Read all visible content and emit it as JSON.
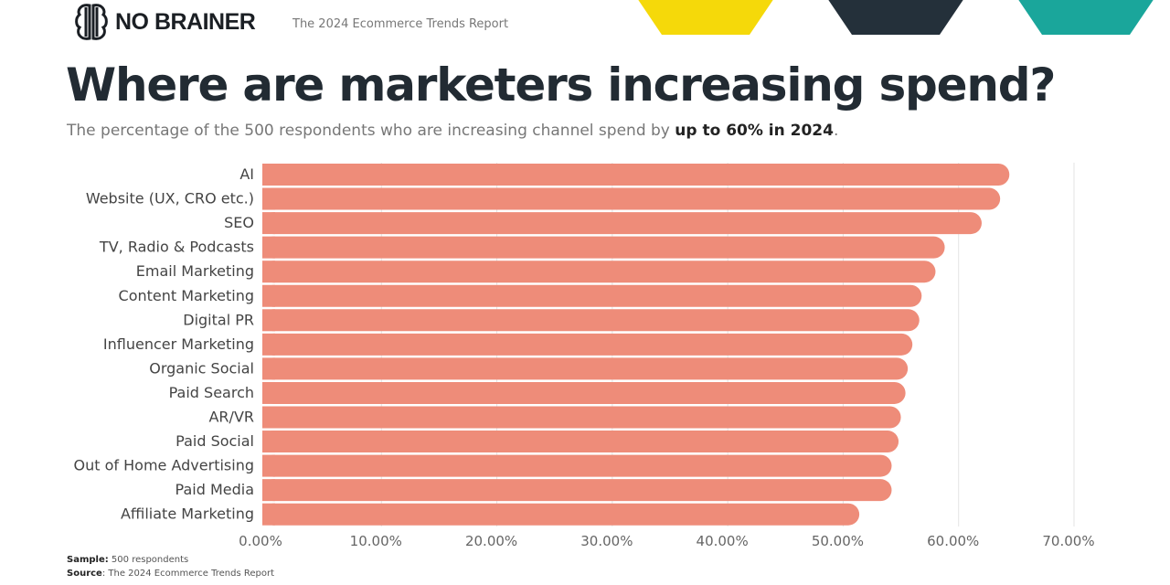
{
  "header": {
    "brand": "NO BRAINER",
    "report": "The 2024 Ecommerce Trends Report",
    "shape_colors": [
      "#f5d90a",
      "#24303a",
      "#1aa69b"
    ]
  },
  "title": "Where are marketers increasing spend?",
  "subtitle": {
    "prefix": "The percentage of the 500 respondents who are increasing channel spend by ",
    "bold": "up to 60% in 2024",
    "suffix": "."
  },
  "chart_data": {
    "type": "bar",
    "orientation": "horizontal",
    "categories": [
      "AI",
      "Website (UX, CRO etc.)",
      "SEO",
      "TV, Radio & Podcasts",
      "Email Marketing",
      "Content Marketing",
      "Digital PR",
      "Influencer Marketing",
      "Organic Social",
      "Paid Search",
      "AR/VR",
      "Paid Social",
      "Out of Home Advertising",
      "Paid Media",
      "Affiliate Marketing"
    ],
    "values": [
      64.4,
      63.6,
      62.0,
      58.8,
      58.0,
      56.8,
      56.6,
      56.0,
      55.6,
      55.4,
      55.0,
      54.8,
      54.2,
      54.2,
      51.4
    ],
    "xlim": [
      0,
      70
    ],
    "ticks": [
      "0.00%",
      "10.00%",
      "20.00%",
      "30.00%",
      "40.00%",
      "50.00%",
      "60.00%",
      "70.00%"
    ],
    "grid": true,
    "bar_color": "#ee8c79"
  },
  "footer": {
    "sample_label": "Sample:",
    "sample": " 500 respondents",
    "source_label": "Source",
    "source": ": The 2024 Ecommerce Trends Report"
  }
}
